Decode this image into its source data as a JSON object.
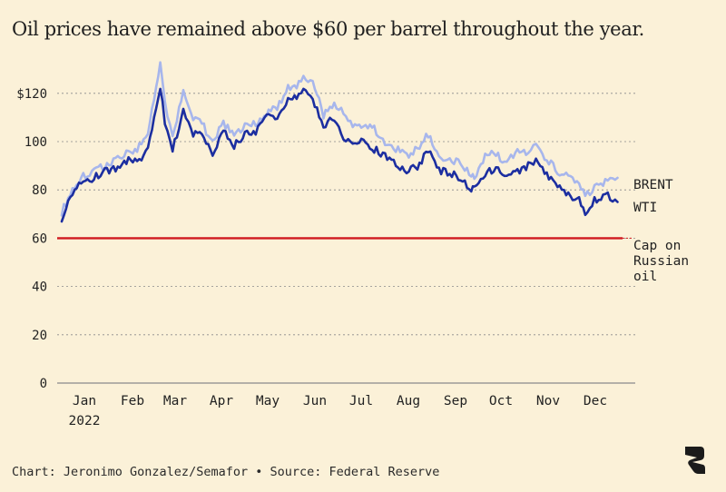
{
  "title": "Oil prices have remained above $60 per barrel throughout the year.",
  "source": "Chart: Jeronimo Gonzalez/Semafor • Source: Federal Reserve",
  "colors": {
    "background": "#fbf1d8",
    "brent": "#a7b6ec",
    "wti": "#1c2ea0",
    "cap": "#d0191f",
    "grid": "#8a8a8a",
    "logo": "#1b1b1b"
  },
  "logo_icon": "semafor-logo-icon",
  "chart_data": {
    "type": "line",
    "title": "Oil prices have remained above $60 per barrel throughout the year.",
    "x_axis": {
      "ticks": [
        "Jan",
        "Feb",
        "Mar",
        "Apr",
        "May",
        "Jun",
        "Jul",
        "Aug",
        "Sep",
        "Oct",
        "Nov",
        "Dec"
      ],
      "year_label": "2022",
      "range": [
        "2022-01-03",
        "2022-12-30"
      ]
    },
    "y_axis": {
      "ticks": [
        "0",
        "20",
        "40",
        "60",
        "80",
        "100",
        "$120"
      ],
      "tick_values": [
        0,
        20,
        40,
        60,
        80,
        100,
        120
      ],
      "range": [
        0,
        130
      ]
    },
    "grid": true,
    "series": [
      {
        "name": "BRENT",
        "values": [
          [
            "2022-01-03",
            71
          ],
          [
            "2022-01-10",
            80
          ],
          [
            "2022-01-17",
            86
          ],
          [
            "2022-01-24",
            88
          ],
          [
            "2022-01-31",
            90
          ],
          [
            "2022-02-07",
            92
          ],
          [
            "2022-02-14",
            95
          ],
          [
            "2022-02-21",
            97
          ],
          [
            "2022-02-28",
            103
          ],
          [
            "2022-03-04",
            118
          ],
          [
            "2022-03-08",
            133
          ],
          [
            "2022-03-11",
            116
          ],
          [
            "2022-03-16",
            101
          ],
          [
            "2022-03-23",
            121
          ],
          [
            "2022-03-28",
            111
          ],
          [
            "2022-04-04",
            108
          ],
          [
            "2022-04-11",
            99
          ],
          [
            "2022-04-18",
            108
          ],
          [
            "2022-04-25",
            102
          ],
          [
            "2022-05-02",
            106
          ],
          [
            "2022-05-09",
            108
          ],
          [
            "2022-05-16",
            112
          ],
          [
            "2022-05-23",
            114
          ],
          [
            "2022-05-30",
            122
          ],
          [
            "2022-06-06",
            124
          ],
          [
            "2022-06-09",
            127
          ],
          [
            "2022-06-15",
            125
          ],
          [
            "2022-06-22",
            111
          ],
          [
            "2022-06-29",
            116
          ],
          [
            "2022-07-05",
            113
          ],
          [
            "2022-07-11",
            106
          ],
          [
            "2022-07-18",
            107
          ],
          [
            "2022-07-25",
            105
          ],
          [
            "2022-08-01",
            100
          ],
          [
            "2022-08-08",
            97
          ],
          [
            "2022-08-15",
            94
          ],
          [
            "2022-08-22",
            97
          ],
          [
            "2022-08-29",
            103
          ],
          [
            "2022-09-05",
            94
          ],
          [
            "2022-09-12",
            93
          ],
          [
            "2022-09-19",
            91
          ],
          [
            "2022-09-26",
            86
          ],
          [
            "2022-09-28",
            84
          ],
          [
            "2022-10-05",
            94
          ],
          [
            "2022-10-12",
            95
          ],
          [
            "2022-10-19",
            91
          ],
          [
            "2022-10-26",
            96
          ],
          [
            "2022-11-02",
            96
          ],
          [
            "2022-11-07",
            98
          ],
          [
            "2022-11-14",
            93
          ],
          [
            "2022-11-21",
            88
          ],
          [
            "2022-11-28",
            85
          ],
          [
            "2022-12-05",
            82
          ],
          [
            "2022-12-09",
            77
          ],
          [
            "2022-12-15",
            81
          ],
          [
            "2022-12-22",
            83
          ],
          [
            "2022-12-30",
            85
          ]
        ]
      },
      {
        "name": "WTI",
        "values": [
          [
            "2022-01-03",
            68
          ],
          [
            "2022-01-10",
            78
          ],
          [
            "2022-01-17",
            84
          ],
          [
            "2022-01-24",
            85
          ],
          [
            "2022-01-31",
            88
          ],
          [
            "2022-02-07",
            89
          ],
          [
            "2022-02-14",
            92
          ],
          [
            "2022-02-21",
            92
          ],
          [
            "2022-02-28",
            96
          ],
          [
            "2022-03-04",
            110
          ],
          [
            "2022-03-08",
            123
          ],
          [
            "2022-03-11",
            108
          ],
          [
            "2022-03-16",
            96
          ],
          [
            "2022-03-23",
            114
          ],
          [
            "2022-03-28",
            104
          ],
          [
            "2022-04-04",
            102
          ],
          [
            "2022-04-11",
            95
          ],
          [
            "2022-04-18",
            104
          ],
          [
            "2022-04-25",
            98
          ],
          [
            "2022-05-02",
            103
          ],
          [
            "2022-05-09",
            104
          ],
          [
            "2022-05-16",
            110
          ],
          [
            "2022-05-23",
            110
          ],
          [
            "2022-05-30",
            117
          ],
          [
            "2022-06-06",
            119
          ],
          [
            "2022-06-09",
            122
          ],
          [
            "2022-06-15",
            118
          ],
          [
            "2022-06-22",
            106
          ],
          [
            "2022-06-29",
            110
          ],
          [
            "2022-07-05",
            101
          ],
          [
            "2022-07-11",
            98
          ],
          [
            "2022-07-18",
            100
          ],
          [
            "2022-07-25",
            97
          ],
          [
            "2022-08-01",
            94
          ],
          [
            "2022-08-08",
            91
          ],
          [
            "2022-08-15",
            88
          ],
          [
            "2022-08-22",
            90
          ],
          [
            "2022-08-29",
            96
          ],
          [
            "2022-09-05",
            88
          ],
          [
            "2022-09-12",
            87
          ],
          [
            "2022-09-19",
            85
          ],
          [
            "2022-09-26",
            79
          ],
          [
            "2022-09-28",
            82
          ],
          [
            "2022-10-05",
            87
          ],
          [
            "2022-10-12",
            89
          ],
          [
            "2022-10-19",
            85
          ],
          [
            "2022-10-26",
            88
          ],
          [
            "2022-11-02",
            90
          ],
          [
            "2022-11-07",
            92
          ],
          [
            "2022-11-14",
            87
          ],
          [
            "2022-11-21",
            81
          ],
          [
            "2022-11-28",
            78
          ],
          [
            "2022-12-05",
            76
          ],
          [
            "2022-12-09",
            71
          ],
          [
            "2022-12-15",
            76
          ],
          [
            "2022-12-22",
            78
          ],
          [
            "2022-12-30",
            75
          ]
        ]
      }
    ],
    "reference_line": {
      "label": "Cap on Russian oil",
      "value": 60
    },
    "legend": "direct labels at right end of lines"
  }
}
